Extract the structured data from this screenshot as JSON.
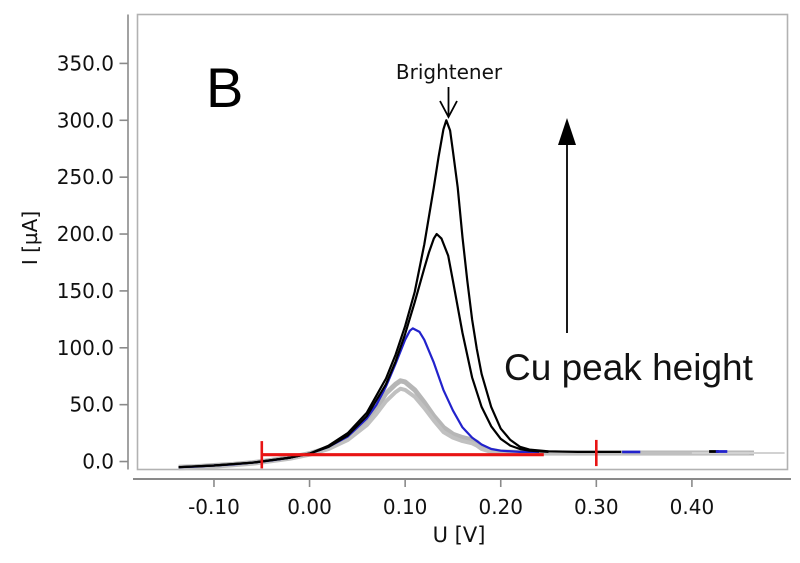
{
  "annotations": {
    "panel_label": "B",
    "brightener_label": "Brightener",
    "cu_peak_label": "Cu peak height"
  },
  "axes": {
    "x": {
      "label": "U [V]",
      "ticks": [
        {
          "v": -0.1,
          "label": "-0.10"
        },
        {
          "v": 0.0,
          "label": "0.00"
        },
        {
          "v": 0.1,
          "label": "0.10"
        },
        {
          "v": 0.2,
          "label": "0.20"
        },
        {
          "v": 0.3,
          "label": "0.30"
        },
        {
          "v": 0.4,
          "label": "0.40"
        }
      ]
    },
    "y": {
      "label": "I [µA]",
      "ticks": [
        {
          "v": 0,
          "label": "0.0"
        },
        {
          "v": 50,
          "label": "50.0"
        },
        {
          "v": 100,
          "label": "100.0"
        },
        {
          "v": 150,
          "label": "150.0"
        },
        {
          "v": 200,
          "label": "200.0"
        },
        {
          "v": 250,
          "label": "250.0"
        },
        {
          "v": 300,
          "label": "300.0"
        },
        {
          "v": 350,
          "label": "350.0"
        }
      ]
    }
  },
  "colors": {
    "black": "#000000",
    "blue": "#2222cc",
    "gray": "#b6b6b6",
    "gray_light": "#c6c6c6",
    "red": "#e81414",
    "frame": "#b2b2b2",
    "axis": "#8a8a8a",
    "text": "#111111"
  },
  "chart_data": {
    "type": "line",
    "title": "",
    "xlabel": "U [V]",
    "ylabel": "I [µA]",
    "xlim": [
      -0.18,
      0.5
    ],
    "ylim": [
      -7,
      393
    ],
    "grid": false,
    "legend": "none",
    "annotations": [
      "B",
      "Brightener (arrow down to tallest peak)",
      "Cu peak height (arrow up)"
    ],
    "series": [
      {
        "name": "gray-band-upper",
        "color": "#b6b6b6",
        "width": 5,
        "points": [
          [
            -0.137,
            -5
          ],
          [
            -0.12,
            -4.5
          ],
          [
            -0.1,
            -3.5
          ],
          [
            -0.08,
            -2.5
          ],
          [
            -0.06,
            -1
          ],
          [
            -0.04,
            1
          ],
          [
            -0.02,
            3.5
          ],
          [
            0.0,
            7
          ],
          [
            0.02,
            12
          ],
          [
            0.04,
            21
          ],
          [
            0.05,
            27
          ],
          [
            0.06,
            36
          ],
          [
            0.07,
            47
          ],
          [
            0.08,
            60
          ],
          [
            0.09,
            68
          ],
          [
            0.095,
            71
          ],
          [
            0.1,
            70
          ],
          [
            0.11,
            63
          ],
          [
            0.12,
            52
          ],
          [
            0.13,
            40
          ],
          [
            0.14,
            30
          ],
          [
            0.15,
            24
          ],
          [
            0.16,
            21
          ],
          [
            0.17,
            19
          ],
          [
            0.175,
            17
          ],
          [
            0.18,
            13
          ],
          [
            0.19,
            10
          ],
          [
            0.2,
            8.5
          ],
          [
            0.22,
            8
          ],
          [
            0.26,
            7.5
          ],
          [
            0.3,
            7.5
          ],
          [
            0.35,
            7.5
          ],
          [
            0.4,
            7.5
          ],
          [
            0.465,
            7.5
          ]
        ]
      },
      {
        "name": "gray-band-lower",
        "color": "#c0c0c0",
        "width": 4,
        "points": [
          [
            -0.137,
            -6
          ],
          [
            -0.1,
            -4.5
          ],
          [
            -0.06,
            -2
          ],
          [
            -0.02,
            2.5
          ],
          [
            0.0,
            6
          ],
          [
            0.02,
            11
          ],
          [
            0.04,
            19
          ],
          [
            0.06,
            32
          ],
          [
            0.07,
            42
          ],
          [
            0.08,
            53
          ],
          [
            0.09,
            61
          ],
          [
            0.095,
            64
          ],
          [
            0.1,
            63
          ],
          [
            0.11,
            57
          ],
          [
            0.12,
            47
          ],
          [
            0.13,
            36
          ],
          [
            0.14,
            26
          ],
          [
            0.15,
            21
          ],
          [
            0.16,
            18
          ],
          [
            0.17,
            16
          ],
          [
            0.175,
            14
          ],
          [
            0.18,
            11
          ],
          [
            0.19,
            8.5
          ],
          [
            0.2,
            7.5
          ],
          [
            0.25,
            7
          ],
          [
            0.3,
            7
          ],
          [
            0.4,
            7
          ],
          [
            0.46,
            7
          ]
        ]
      },
      {
        "name": "gray-tail-edge",
        "color": "#d2d2d2",
        "width": 2,
        "points": [
          [
            0.4,
            7.5
          ],
          [
            0.497,
            7.5
          ]
        ]
      },
      {
        "name": "blue-curve",
        "color": "#2222cc",
        "width": 2.2,
        "points": [
          [
            -0.137,
            -5
          ],
          [
            -0.12,
            -4.5
          ],
          [
            -0.1,
            -3.5
          ],
          [
            -0.08,
            -2.5
          ],
          [
            -0.06,
            -1
          ],
          [
            -0.04,
            1
          ],
          [
            -0.02,
            3.5
          ],
          [
            0.0,
            7
          ],
          [
            0.02,
            13
          ],
          [
            0.04,
            22
          ],
          [
            0.06,
            38
          ],
          [
            0.07,
            50
          ],
          [
            0.08,
            66
          ],
          [
            0.09,
            86
          ],
          [
            0.1,
            107
          ],
          [
            0.105,
            115
          ],
          [
            0.108,
            117
          ],
          [
            0.115,
            114
          ],
          [
            0.12,
            107
          ],
          [
            0.13,
            87
          ],
          [
            0.14,
            63
          ],
          [
            0.15,
            45
          ],
          [
            0.16,
            30
          ],
          [
            0.17,
            21
          ],
          [
            0.18,
            15
          ],
          [
            0.19,
            11
          ],
          [
            0.2,
            9.5
          ],
          [
            0.22,
            8.5
          ],
          [
            0.24,
            8.5
          ]
        ]
      },
      {
        "name": "black-curve-mid",
        "color": "#000000",
        "width": 2.2,
        "points": [
          [
            -0.137,
            -5
          ],
          [
            -0.1,
            -3.5
          ],
          [
            -0.06,
            -1
          ],
          [
            -0.02,
            3.5
          ],
          [
            0.0,
            7
          ],
          [
            0.02,
            13
          ],
          [
            0.04,
            23
          ],
          [
            0.06,
            40
          ],
          [
            0.08,
            68
          ],
          [
            0.09,
            88
          ],
          [
            0.1,
            112
          ],
          [
            0.11,
            140
          ],
          [
            0.12,
            170
          ],
          [
            0.125,
            184
          ],
          [
            0.13,
            196
          ],
          [
            0.133,
            200
          ],
          [
            0.138,
            196
          ],
          [
            0.145,
            181
          ],
          [
            0.15,
            159
          ],
          [
            0.16,
            113
          ],
          [
            0.17,
            74
          ],
          [
            0.18,
            48
          ],
          [
            0.19,
            31
          ],
          [
            0.2,
            20
          ],
          [
            0.21,
            14
          ],
          [
            0.22,
            11
          ],
          [
            0.23,
            9.5
          ],
          [
            0.25,
            8.5
          ]
        ]
      },
      {
        "name": "black-curve-tall",
        "color": "#000000",
        "width": 2.2,
        "points": [
          [
            -0.137,
            -5
          ],
          [
            -0.1,
            -3.5
          ],
          [
            -0.06,
            -1
          ],
          [
            -0.02,
            3.5
          ],
          [
            0.0,
            7
          ],
          [
            0.02,
            14
          ],
          [
            0.04,
            25
          ],
          [
            0.06,
            43
          ],
          [
            0.08,
            73
          ],
          [
            0.09,
            94
          ],
          [
            0.1,
            119
          ],
          [
            0.11,
            149
          ],
          [
            0.12,
            191
          ],
          [
            0.13,
            241
          ],
          [
            0.135,
            268
          ],
          [
            0.14,
            292
          ],
          [
            0.143,
            300
          ],
          [
            0.147,
            291
          ],
          [
            0.15,
            273
          ],
          [
            0.155,
            241
          ],
          [
            0.16,
            197
          ],
          [
            0.165,
            159
          ],
          [
            0.17,
            125
          ],
          [
            0.175,
            99
          ],
          [
            0.18,
            77
          ],
          [
            0.19,
            48
          ],
          [
            0.2,
            29
          ],
          [
            0.21,
            19
          ],
          [
            0.22,
            13
          ],
          [
            0.23,
            10.5
          ],
          [
            0.25,
            9
          ],
          [
            0.28,
            8.5
          ],
          [
            0.326,
            8.5
          ]
        ]
      },
      {
        "name": "red-baseline",
        "color": "#e81414",
        "width": 3.2,
        "points": [
          [
            -0.05,
            6
          ],
          [
            0.245,
            6
          ]
        ]
      },
      {
        "name": "red-marker-left",
        "color": "#e81414",
        "width": 2.6,
        "points": [
          [
            -0.05,
            18
          ],
          [
            -0.05,
            -6
          ]
        ]
      },
      {
        "name": "red-marker-right",
        "color": "#e81414",
        "width": 2.6,
        "points": [
          [
            0.3,
            19
          ],
          [
            0.3,
            -4
          ]
        ]
      },
      {
        "name": "blue-dash-1",
        "color": "#2222cc",
        "width": 2.6,
        "points": [
          [
            0.327,
            8.5
          ],
          [
            0.346,
            8.5
          ]
        ]
      },
      {
        "name": "black-dash-far",
        "color": "#000000",
        "width": 2.8,
        "points": [
          [
            0.418,
            8.8
          ],
          [
            0.428,
            8.8
          ]
        ]
      },
      {
        "name": "blue-dash-2",
        "color": "#2222cc",
        "width": 2.8,
        "points": [
          [
            0.425,
            8.8
          ],
          [
            0.437,
            8.8
          ]
        ]
      }
    ]
  }
}
